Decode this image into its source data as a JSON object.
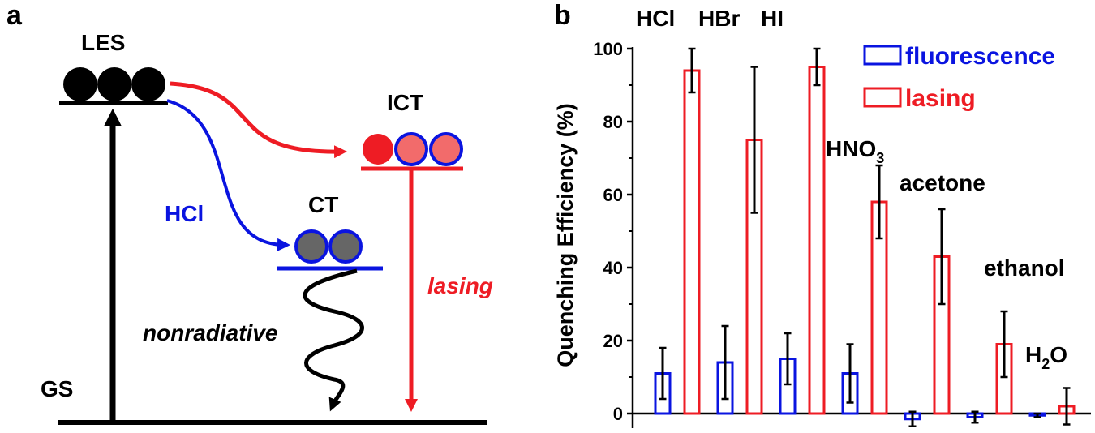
{
  "panel_a": {
    "panel_label": "a",
    "les_label": "LES",
    "ict_label": "ICT",
    "ct_label": "CT",
    "gs_label": "GS",
    "hcl_label": "HCl",
    "lasing_label": "lasing",
    "nonradiative_label": "nonradiative",
    "colors": {
      "black": "#000000",
      "red": "#ee1c24",
      "blue": "#0a14e0",
      "pink": "#f26b6b",
      "gray": "#666666"
    }
  },
  "panel_b": {
    "panel_label": "b"
  },
  "chart_data": {
    "type": "bar",
    "title": "",
    "xlabel": "",
    "ylabel": "Quenching Efficiency (%)",
    "ylim": [
      0,
      100
    ],
    "yticks": [
      "0",
      "20",
      "40",
      "60",
      "80",
      "100"
    ],
    "categories": [
      "HCl",
      "HBr",
      "HI",
      "HNO3",
      "acetone",
      "ethanol",
      "H2O"
    ],
    "category_labels": [
      {
        "main": "HCl",
        "sub": "",
        "tail": ""
      },
      {
        "main": "HBr",
        "sub": "",
        "tail": ""
      },
      {
        "main": "HI",
        "sub": "",
        "tail": ""
      },
      {
        "main": "HNO",
        "sub": "3",
        "tail": ""
      },
      {
        "main": "acetone",
        "sub": "",
        "tail": ""
      },
      {
        "main": "ethanol",
        "sub": "",
        "tail": ""
      },
      {
        "main": "H",
        "sub": "2",
        "tail": "O"
      }
    ],
    "legend_position": "top-right",
    "series": [
      {
        "name": "fluorescence",
        "color": "#0a14e0",
        "values": [
          11,
          14,
          15,
          11,
          -1.5,
          -1,
          -0.5
        ],
        "err_low": [
          7,
          10,
          7,
          8,
          2,
          1.5,
          0.5
        ],
        "err_high": [
          7,
          10,
          7,
          8,
          2,
          1.5,
          0.5
        ]
      },
      {
        "name": "lasing",
        "color": "#ee1c24",
        "values": [
          94,
          75,
          95,
          58,
          43,
          19,
          2
        ],
        "err_low": [
          6,
          20,
          5,
          10,
          13,
          9,
          5
        ],
        "err_high": [
          6,
          20,
          5,
          10,
          13,
          9,
          5
        ]
      }
    ]
  }
}
